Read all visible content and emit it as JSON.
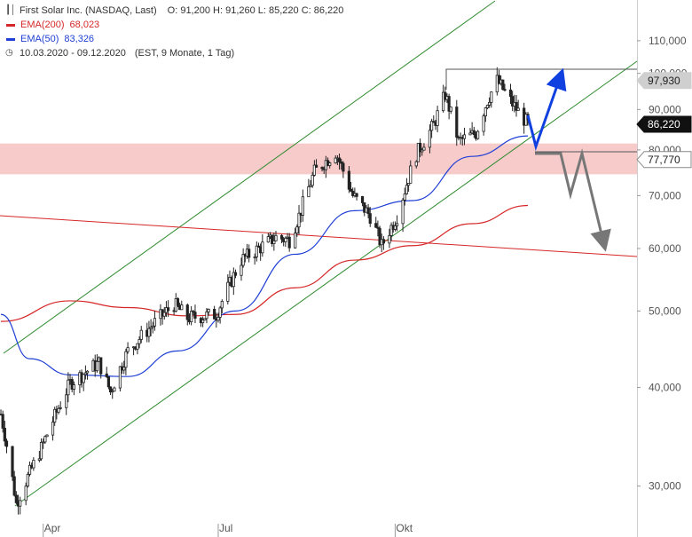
{
  "header": {
    "title": "First Solar Inc. (NASDAQ, Last)",
    "ohlc": "O: 91,200  H: 91,260  L: 85,220  C: 86,220",
    "ema200_label": "EMA(200)",
    "ema200_value": "68,023",
    "ema50_label": "EMA(50)",
    "ema50_value": "83,326",
    "range": "10.03.2020 - 09.12.2020",
    "range_meta": "(EST, 9 Monate, 1 Tag)"
  },
  "colors": {
    "ema200": "#d62728",
    "ema50": "#1f3fd6",
    "channel": "#2e8b2e",
    "zone": "#f7c5c5",
    "bullish_arrow": "#1040e0",
    "bearish_arrow": "#777777",
    "candle": "#222222"
  },
  "chart_data": {
    "type": "candlestick",
    "title": "First Solar Inc. (NASDAQ, Last)",
    "x_labels": [
      "Apr",
      "Jul",
      "Okt"
    ],
    "y_scale": "log",
    "y_ticks": [
      "30,000",
      "40,000",
      "50,000",
      "60,000",
      "70,000",
      "80,000",
      "90,000",
      "100,000",
      "110,000"
    ],
    "ylim": [
      27,
      120
    ],
    "price_tags": [
      {
        "label": "97,930",
        "value": 97.93,
        "style": "gray"
      },
      {
        "label": "86,220",
        "value": 86.22,
        "style": "black"
      },
      {
        "label": "77,770",
        "value": 77.77,
        "style": "white"
      }
    ],
    "last": {
      "open": 91.2,
      "high": 91.26,
      "low": 85.22,
      "close": 86.22
    },
    "ema200_last": 68.023,
    "ema50_last": 83.326,
    "resistance_zone": [
      74.5,
      81.5
    ],
    "close_series": [
      {
        "date": "2020-03-10",
        "close": 37.0
      },
      {
        "date": "2020-03-18",
        "close": 28.5
      },
      {
        "date": "2020-03-31",
        "close": 33.5
      },
      {
        "date": "2020-04-15",
        "close": 40.5
      },
      {
        "date": "2020-04-30",
        "close": 43.0
      },
      {
        "date": "2020-05-06",
        "close": 39.5
      },
      {
        "date": "2020-05-15",
        "close": 44.5
      },
      {
        "date": "2020-05-26",
        "close": 47.5
      },
      {
        "date": "2020-06-08",
        "close": 51.0
      },
      {
        "date": "2020-06-15",
        "close": 49.0
      },
      {
        "date": "2020-06-30",
        "close": 49.5
      },
      {
        "date": "2020-07-13",
        "close": 58.0
      },
      {
        "date": "2020-07-31",
        "close": 62.0
      },
      {
        "date": "2020-08-07",
        "close": 61.5
      },
      {
        "date": "2020-08-12",
        "close": 66.0
      },
      {
        "date": "2020-08-20",
        "close": 75.0
      },
      {
        "date": "2020-08-31",
        "close": 79.5
      },
      {
        "date": "2020-09-09",
        "close": 70.0
      },
      {
        "date": "2020-09-18",
        "close": 66.0
      },
      {
        "date": "2020-09-24",
        "close": 60.5
      },
      {
        "date": "2020-10-02",
        "close": 66.0
      },
      {
        "date": "2020-10-12",
        "close": 79.0
      },
      {
        "date": "2020-10-21",
        "close": 86.0
      },
      {
        "date": "2020-10-27",
        "close": 94.0
      },
      {
        "date": "2020-11-03",
        "close": 82.0
      },
      {
        "date": "2020-11-12",
        "close": 84.0
      },
      {
        "date": "2020-11-18",
        "close": 92.5
      },
      {
        "date": "2020-11-23",
        "close": 97.93
      },
      {
        "date": "2020-12-01",
        "close": 91.5
      },
      {
        "date": "2020-12-09",
        "close": 86.22
      }
    ],
    "ema200_series": [
      {
        "date": "2020-03-10",
        "value": 48.5
      },
      {
        "date": "2020-04-15",
        "value": 51.5
      },
      {
        "date": "2020-05-15",
        "value": 50.5
      },
      {
        "date": "2020-06-15",
        "value": 49.3
      },
      {
        "date": "2020-07-10",
        "value": 49.5
      },
      {
        "date": "2020-08-10",
        "value": 53.5
      },
      {
        "date": "2020-09-10",
        "value": 58.0
      },
      {
        "date": "2020-10-10",
        "value": 60.5
      },
      {
        "date": "2020-11-10",
        "value": 64.5
      },
      {
        "date": "2020-12-09",
        "value": 68.023
      }
    ],
    "ema50_series": [
      {
        "date": "2020-03-10",
        "value": 49.5
      },
      {
        "date": "2020-03-25",
        "value": 43.5
      },
      {
        "date": "2020-04-15",
        "value": 41.5
      },
      {
        "date": "2020-05-15",
        "value": 41.3
      },
      {
        "date": "2020-06-10",
        "value": 44.5
      },
      {
        "date": "2020-07-10",
        "value": 50.0
      },
      {
        "date": "2020-08-10",
        "value": 59.0
      },
      {
        "date": "2020-09-10",
        "value": 67.0
      },
      {
        "date": "2020-10-10",
        "value": 69.0
      },
      {
        "date": "2020-11-10",
        "value": 78.5
      },
      {
        "date": "2020-12-09",
        "value": 83.326
      }
    ]
  }
}
